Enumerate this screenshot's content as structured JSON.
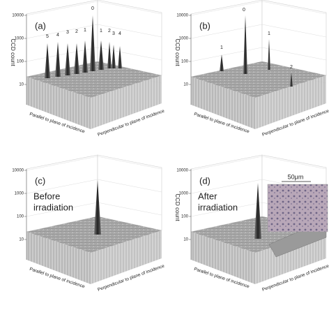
{
  "panels": [
    {
      "label": "(a)",
      "y_axis_label": "CCD count",
      "y_ticks": [
        "10000",
        "1000",
        "100",
        "10"
      ],
      "peak_labels": [
        "5",
        "4",
        "3",
        "2",
        "1",
        "0",
        "1",
        "2",
        "3",
        "4"
      ],
      "x_axis_label": "Parallel to plane of incidence",
      "z_axis_label": "Perpendicular to plane of incidence"
    },
    {
      "label": "(b)",
      "y_axis_label": "CCD count",
      "y_ticks": [
        "10000",
        "1000",
        "100",
        "10"
      ],
      "peak_labels": [
        "1",
        "0",
        "1",
        "2"
      ],
      "x_axis_label": "Parallel to plane of incidence",
      "z_axis_label": "Perpendicular to plane of incidence"
    },
    {
      "label": "(c)",
      "y_ticks": [
        "10000",
        "1000",
        "100",
        "10"
      ],
      "annotation": [
        "Before",
        "irradiation"
      ],
      "x_axis_label": "Parallel to plane of incidence",
      "z_axis_label": "Perpendicular to plane of incidence"
    },
    {
      "label": "(d)",
      "y_axis_label": "CCD count",
      "y_ticks": [
        "10000",
        "1000",
        "100",
        "10"
      ],
      "annotation": [
        "After",
        "irradiation"
      ],
      "scale_bar": "50μm",
      "x_axis_label": "Parallel to plane of incidence",
      "z_axis_label": "Perpendicular to plane of incidence"
    }
  ]
}
